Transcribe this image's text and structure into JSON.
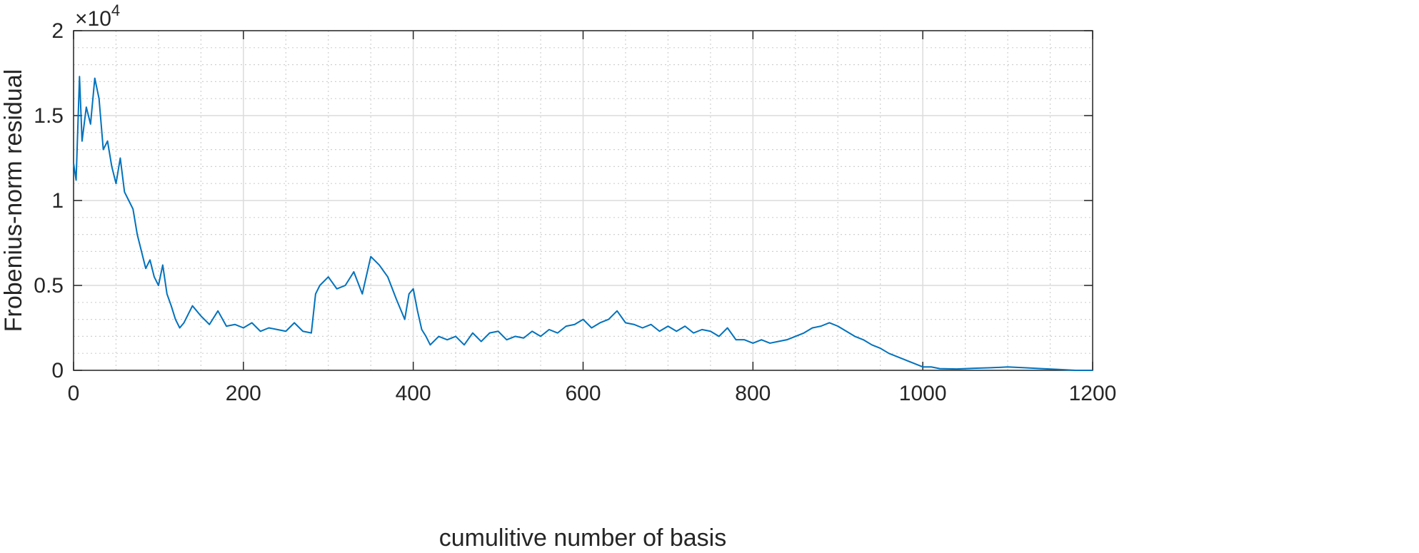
{
  "chart_data": {
    "type": "line",
    "x_label": "cumulitive number of basis",
    "y_label": "Frobenius-norm residual",
    "y_scale_label": [
      "×10",
      "4"
    ],
    "xlim": [
      0,
      1200
    ],
    "ylim": [
      0,
      2
    ],
    "xticks": [
      0,
      200,
      400,
      600,
      800,
      1000,
      1200
    ],
    "yticks": [
      0,
      0.5,
      1,
      1.5,
      2
    ],
    "xminorticks": [
      50,
      100,
      150,
      250,
      300,
      350,
      450,
      500,
      550,
      650,
      700,
      750,
      850,
      900,
      950,
      1050,
      1100,
      1150
    ],
    "yminorticks": [
      0.1,
      0.2,
      0.3,
      0.4,
      0.6,
      0.7,
      0.8,
      0.9,
      1.1,
      1.2,
      1.3,
      1.4,
      1.6,
      1.7,
      1.8,
      1.9
    ],
    "grid": true,
    "minor_grid": true,
    "x": [
      0,
      3,
      7,
      10,
      15,
      20,
      25,
      30,
      35,
      40,
      45,
      50,
      55,
      60,
      65,
      70,
      75,
      80,
      85,
      90,
      95,
      100,
      105,
      110,
      115,
      120,
      125,
      130,
      140,
      150,
      160,
      170,
      180,
      190,
      200,
      210,
      220,
      230,
      240,
      250,
      260,
      270,
      280,
      285,
      290,
      300,
      310,
      320,
      330,
      340,
      350,
      360,
      370,
      380,
      390,
      395,
      400,
      405,
      410,
      415,
      420,
      430,
      440,
      450,
      460,
      470,
      480,
      490,
      500,
      510,
      520,
      530,
      540,
      550,
      560,
      570,
      580,
      590,
      600,
      610,
      620,
      630,
      640,
      650,
      660,
      670,
      680,
      690,
      700,
      710,
      720,
      730,
      740,
      750,
      760,
      770,
      780,
      790,
      800,
      810,
      820,
      830,
      840,
      850,
      860,
      870,
      880,
      890,
      900,
      910,
      920,
      930,
      940,
      950,
      960,
      970,
      980,
      990,
      1000,
      1010,
      1020,
      1040,
      1060,
      1080,
      1100,
      1120,
      1140,
      1160,
      1180,
      1200
    ],
    "series": [
      {
        "name": "residual",
        "color": "#0072bd",
        "values": [
          1.22,
          1.12,
          1.73,
          1.35,
          1.55,
          1.45,
          1.72,
          1.6,
          1.3,
          1.35,
          1.2,
          1.1,
          1.25,
          1.05,
          1.0,
          0.95,
          0.8,
          0.7,
          0.6,
          0.65,
          0.55,
          0.5,
          0.62,
          0.45,
          0.38,
          0.3,
          0.25,
          0.28,
          0.38,
          0.32,
          0.27,
          0.35,
          0.26,
          0.27,
          0.25,
          0.28,
          0.23,
          0.25,
          0.24,
          0.23,
          0.28,
          0.23,
          0.22,
          0.45,
          0.5,
          0.55,
          0.48,
          0.5,
          0.58,
          0.45,
          0.67,
          0.62,
          0.55,
          0.42,
          0.3,
          0.45,
          0.48,
          0.35,
          0.24,
          0.2,
          0.15,
          0.2,
          0.18,
          0.2,
          0.15,
          0.22,
          0.17,
          0.22,
          0.23,
          0.18,
          0.2,
          0.19,
          0.23,
          0.2,
          0.24,
          0.22,
          0.26,
          0.27,
          0.3,
          0.25,
          0.28,
          0.3,
          0.35,
          0.28,
          0.27,
          0.25,
          0.27,
          0.23,
          0.26,
          0.23,
          0.26,
          0.22,
          0.24,
          0.23,
          0.2,
          0.25,
          0.18,
          0.18,
          0.16,
          0.18,
          0.16,
          0.17,
          0.18,
          0.2,
          0.22,
          0.25,
          0.26,
          0.28,
          0.26,
          0.23,
          0.2,
          0.18,
          0.15,
          0.13,
          0.1,
          0.08,
          0.06,
          0.04,
          0.02,
          0.02,
          0.01,
          0.008,
          0.012,
          0.015,
          0.02,
          0.015,
          0.01,
          0.005,
          0,
          0
        ]
      }
    ]
  }
}
